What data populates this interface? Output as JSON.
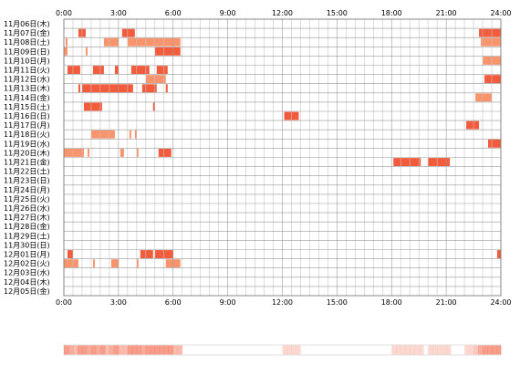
{
  "chart_data": {
    "type": "heatmap",
    "title": "",
    "xlabel": "",
    "ylabel": "",
    "x_ticks": [
      "0:00",
      "3:00",
      "6:00",
      "9:00",
      "12:00",
      "15:00",
      "18:00",
      "21:00",
      "24:00"
    ],
    "xlim": [
      0,
      24
    ],
    "grid": true,
    "colors": {
      "dark": "#f25c3c",
      "light": "#f9946c",
      "strip_base": "#fdeee8"
    },
    "rows": [
      {
        "label": "11月06日(木)",
        "segments": []
      },
      {
        "label": "11月07日(金)",
        "segments": [
          [
            0.8,
            1.2,
            "dark"
          ],
          [
            3.2,
            3.9,
            "dark"
          ],
          [
            22.8,
            23.3,
            "dark"
          ],
          [
            23.3,
            23.9,
            "dark"
          ],
          [
            23.9,
            24.0,
            "dark"
          ]
        ]
      },
      {
        "label": "11月08日(土)",
        "segments": [
          [
            0.1,
            0.2,
            "light"
          ],
          [
            2.2,
            3.0,
            "light"
          ],
          [
            3.5,
            6.4,
            "light"
          ],
          [
            22.9,
            24.0,
            "light"
          ]
        ]
      },
      {
        "label": "11月09日(日)",
        "segments": [
          [
            0.0,
            0.2,
            "light"
          ],
          [
            1.2,
            1.3,
            "light"
          ],
          [
            5.0,
            6.4,
            "dark"
          ]
        ]
      },
      {
        "label": "11月10日(月)",
        "segments": [
          [
            23.0,
            24.0,
            "light"
          ]
        ]
      },
      {
        "label": "11月11日(火)",
        "segments": [
          [
            0.2,
            0.9,
            "dark"
          ],
          [
            1.6,
            2.2,
            "dark"
          ],
          [
            2.8,
            3.0,
            "dark"
          ],
          [
            3.7,
            4.7,
            "dark"
          ],
          [
            5.1,
            5.7,
            "dark"
          ]
        ]
      },
      {
        "label": "11月12日(水)",
        "segments": [
          [
            4.5,
            5.0,
            "light"
          ],
          [
            5.0,
            5.6,
            "light"
          ],
          [
            23.1,
            24.0,
            "dark"
          ]
        ]
      },
      {
        "label": "11月13日(木)",
        "segments": [
          [
            0.8,
            0.9,
            "dark"
          ],
          [
            1.0,
            3.8,
            "dark"
          ],
          [
            4.3,
            5.1,
            "dark"
          ],
          [
            5.6,
            5.7,
            "dark"
          ]
        ]
      },
      {
        "label": "11月14日(金)",
        "segments": [
          [
            22.6,
            23.5,
            "light"
          ]
        ]
      },
      {
        "label": "11月15日(土)",
        "segments": [
          [
            1.1,
            2.1,
            "dark"
          ],
          [
            4.9,
            5.0,
            "dark"
          ]
        ]
      },
      {
        "label": "11月16日(日)",
        "segments": [
          [
            12.1,
            12.9,
            "dark"
          ]
        ]
      },
      {
        "label": "11月17日(月)",
        "segments": [
          [
            22.1,
            22.8,
            "dark"
          ]
        ]
      },
      {
        "label": "11月18日(火)",
        "segments": [
          [
            1.5,
            2.8,
            "light"
          ],
          [
            3.6,
            3.7,
            "light"
          ],
          [
            3.9,
            4.0,
            "light"
          ]
        ]
      },
      {
        "label": "11月19日(水)",
        "segments": [
          [
            23.3,
            23.8,
            "dark"
          ],
          [
            23.8,
            24.0,
            "dark"
          ]
        ]
      },
      {
        "label": "11月20日(木)",
        "segments": [
          [
            0.0,
            1.1,
            "light"
          ],
          [
            1.3,
            1.4,
            "light"
          ],
          [
            3.1,
            3.3,
            "light"
          ],
          [
            4.0,
            4.1,
            "light"
          ],
          [
            5.2,
            5.9,
            "dark"
          ]
        ]
      },
      {
        "label": "11月21日(金)",
        "segments": [
          [
            18.1,
            19.6,
            "dark"
          ],
          [
            20.0,
            21.2,
            "dark"
          ]
        ]
      },
      {
        "label": "11月22日(土)",
        "segments": []
      },
      {
        "label": "11月23日(日)",
        "segments": []
      },
      {
        "label": "11月24日(月)",
        "segments": []
      },
      {
        "label": "11月25日(火)",
        "segments": []
      },
      {
        "label": "11月26日(水)",
        "segments": []
      },
      {
        "label": "11月27日(木)",
        "segments": []
      },
      {
        "label": "11月28日(金)",
        "segments": []
      },
      {
        "label": "11月29日(土)",
        "segments": []
      },
      {
        "label": "11月30日(日)",
        "segments": []
      },
      {
        "label": "12月01日(月)",
        "segments": [
          [
            0.2,
            0.5,
            "dark"
          ],
          [
            4.2,
            4.9,
            "dark"
          ],
          [
            5.0,
            6.0,
            "dark"
          ],
          [
            23.8,
            24.0,
            "dark"
          ]
        ]
      },
      {
        "label": "12月02日(火)",
        "segments": [
          [
            0.0,
            0.8,
            "light"
          ],
          [
            1.6,
            1.7,
            "light"
          ],
          [
            2.6,
            3.0,
            "light"
          ],
          [
            4.0,
            4.1,
            "light"
          ],
          [
            5.6,
            6.4,
            "light"
          ]
        ]
      },
      {
        "label": "12月03日(水)",
        "segments": []
      },
      {
        "label": "12月04日(木)",
        "segments": []
      },
      {
        "label": "12月05日(金)",
        "segments": []
      }
    ]
  }
}
